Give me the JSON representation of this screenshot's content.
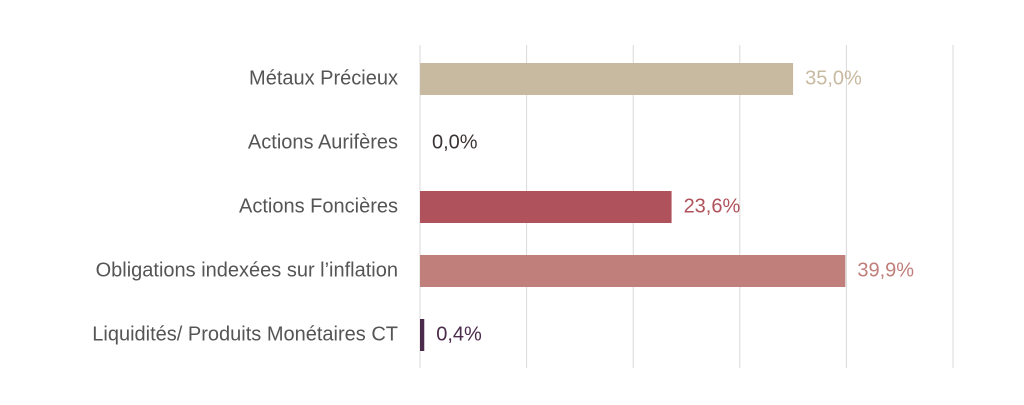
{
  "chart_data": {
    "type": "hbar",
    "categories": [
      "Métaux Précieux",
      "Actions Aurifères",
      "Actions Foncières",
      "Obligations indexées sur l’inflation",
      "Liquidités/ Produits Monétaires CT"
    ],
    "values": [
      35.0,
      0.0,
      23.6,
      39.9,
      0.4
    ],
    "value_labels": [
      "35,0%",
      "0,0%",
      "23,6%",
      "39,9%",
      "0,4%"
    ],
    "colors": [
      "#c8b9a1",
      "#3c3434",
      "#b0525c",
      "#c07f7a",
      "#4b2a4c"
    ],
    "xlim": [
      0,
      50
    ],
    "xticks": [
      0,
      10,
      20,
      30,
      40,
      50
    ],
    "grid": true
  }
}
